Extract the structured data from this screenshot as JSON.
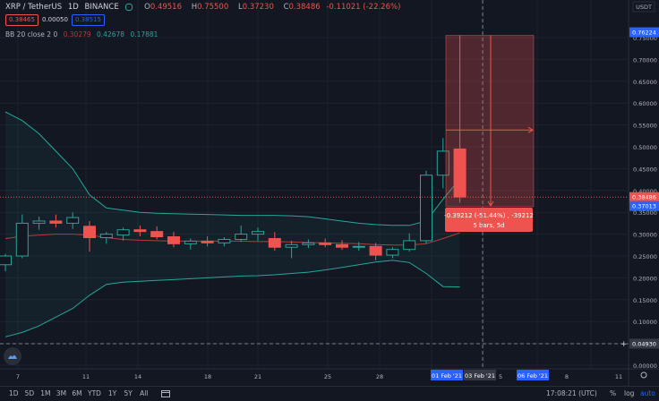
{
  "header": {
    "symbol": "XRP / TetherUS",
    "interval": "1D",
    "exchange": "BINANCE",
    "o_label": "O",
    "o_value": "0.49516",
    "h_label": "H",
    "h_value": "0.75500",
    "l_label": "L",
    "l_value": "0.37230",
    "c_label": "C",
    "c_value": "0.38486",
    "change": "-0.11021 (-22.26%)"
  },
  "quote": {
    "bid": "0.38465",
    "spread": "0.00050",
    "ask": "0.38515"
  },
  "indicator": {
    "name": "BB 20 close 2 0",
    "basis": "0.30279",
    "upper": "0.42678",
    "lower": "0.17881"
  },
  "axis": {
    "currency": "USDT",
    "y_ticks": [
      "0.75000",
      "0.70000",
      "0.65000",
      "0.60000",
      "0.55000",
      "0.50000",
      "0.45000",
      "0.40000",
      "0.35000",
      "0.30000",
      "0.25000",
      "0.20000",
      "0.15000",
      "0.10000",
      "0.05000",
      "0.00000"
    ],
    "x_ticks": [
      "7",
      "11",
      "14",
      "18",
      "21",
      "25",
      "28",
      "4",
      "8",
      "11"
    ],
    "hidden_x_tick": "5"
  },
  "badges": {
    "top_price": "0.76224",
    "last_price": "0.38486",
    "countdown": "0.37013",
    "crosshair_price": "0.04930",
    "date_start": "01 Feb '21",
    "date_cross": "03 Feb '21",
    "date_end": "06 Feb '21"
  },
  "measure": {
    "line1": "-0.39212 (-51.44%) , -39212",
    "line2": "5 bars, 5d"
  },
  "bottom": {
    "timeframes": [
      "1D",
      "5D",
      "1M",
      "3M",
      "6M",
      "YTD",
      "1Y",
      "5Y",
      "All"
    ],
    "time": "17:08:21 (UTC)",
    "pct": "%",
    "log": "log",
    "auto": "auto"
  },
  "colors": {
    "up": "#26a69a",
    "down": "#ef5350",
    "bg": "#131722",
    "grid": "#1e222d",
    "band": "#26a69a",
    "basis": "#b23c3c",
    "badge_blue": "#2962ff"
  },
  "chart_data": {
    "type": "candlestick",
    "y_unit": "USDT",
    "ylim": [
      0.0,
      0.77
    ],
    "candles": [
      {
        "o": 0.23,
        "h": 0.255,
        "l": 0.215,
        "c": 0.25
      },
      {
        "o": 0.25,
        "h": 0.345,
        "l": 0.245,
        "c": 0.325
      },
      {
        "o": 0.325,
        "h": 0.34,
        "l": 0.31,
        "c": 0.33
      },
      {
        "o": 0.33,
        "h": 0.345,
        "l": 0.315,
        "c": 0.325
      },
      {
        "o": 0.325,
        "h": 0.35,
        "l": 0.312,
        "c": 0.338
      },
      {
        "o": 0.318,
        "h": 0.33,
        "l": 0.26,
        "c": 0.292
      },
      {
        "o": 0.292,
        "h": 0.305,
        "l": 0.278,
        "c": 0.3
      },
      {
        "o": 0.298,
        "h": 0.315,
        "l": 0.285,
        "c": 0.31
      },
      {
        "o": 0.31,
        "h": 0.32,
        "l": 0.295,
        "c": 0.306
      },
      {
        "o": 0.306,
        "h": 0.318,
        "l": 0.288,
        "c": 0.294
      },
      {
        "o": 0.294,
        "h": 0.305,
        "l": 0.27,
        "c": 0.278
      },
      {
        "o": 0.278,
        "h": 0.29,
        "l": 0.265,
        "c": 0.284
      },
      {
        "o": 0.284,
        "h": 0.295,
        "l": 0.272,
        "c": 0.28
      },
      {
        "o": 0.28,
        "h": 0.293,
        "l": 0.272,
        "c": 0.288
      },
      {
        "o": 0.288,
        "h": 0.32,
        "l": 0.282,
        "c": 0.3
      },
      {
        "o": 0.3,
        "h": 0.315,
        "l": 0.285,
        "c": 0.306
      },
      {
        "o": 0.29,
        "h": 0.305,
        "l": 0.262,
        "c": 0.27
      },
      {
        "o": 0.27,
        "h": 0.285,
        "l": 0.245,
        "c": 0.276
      },
      {
        "o": 0.276,
        "h": 0.288,
        "l": 0.268,
        "c": 0.28
      },
      {
        "o": 0.28,
        "h": 0.29,
        "l": 0.27,
        "c": 0.276
      },
      {
        "o": 0.276,
        "h": 0.286,
        "l": 0.264,
        "c": 0.27
      },
      {
        "o": 0.27,
        "h": 0.282,
        "l": 0.262,
        "c": 0.272
      },
      {
        "o": 0.272,
        "h": 0.28,
        "l": 0.24,
        "c": 0.252
      },
      {
        "o": 0.252,
        "h": 0.27,
        "l": 0.245,
        "c": 0.265
      },
      {
        "o": 0.265,
        "h": 0.302,
        "l": 0.26,
        "c": 0.285
      },
      {
        "o": 0.285,
        "h": 0.445,
        "l": 0.278,
        "c": 0.435
      },
      {
        "o": 0.435,
        "h": 0.52,
        "l": 0.405,
        "c": 0.49
      },
      {
        "o": 0.495,
        "h": 0.755,
        "l": 0.372,
        "c": 0.385
      }
    ],
    "bb_upper": [
      0.58,
      0.56,
      0.53,
      0.49,
      0.45,
      0.39,
      0.36,
      0.355,
      0.35,
      0.348,
      0.347,
      0.346,
      0.345,
      0.344,
      0.343,
      0.343,
      0.343,
      0.342,
      0.34,
      0.335,
      0.33,
      0.325,
      0.322,
      0.32,
      0.32,
      0.33,
      0.38,
      0.427
    ],
    "bb_basis": [
      0.29,
      0.295,
      0.298,
      0.3,
      0.3,
      0.298,
      0.292,
      0.288,
      0.286,
      0.285,
      0.284,
      0.284,
      0.284,
      0.284,
      0.284,
      0.283,
      0.283,
      0.282,
      0.281,
      0.28,
      0.279,
      0.278,
      0.276,
      0.275,
      0.275,
      0.278,
      0.29,
      0.303
    ],
    "bb_lower": [
      0.065,
      0.075,
      0.09,
      0.11,
      0.13,
      0.16,
      0.185,
      0.19,
      0.192,
      0.194,
      0.196,
      0.198,
      0.2,
      0.202,
      0.204,
      0.205,
      0.207,
      0.21,
      0.213,
      0.218,
      0.224,
      0.23,
      0.236,
      0.24,
      0.235,
      0.21,
      0.18,
      0.179
    ]
  }
}
